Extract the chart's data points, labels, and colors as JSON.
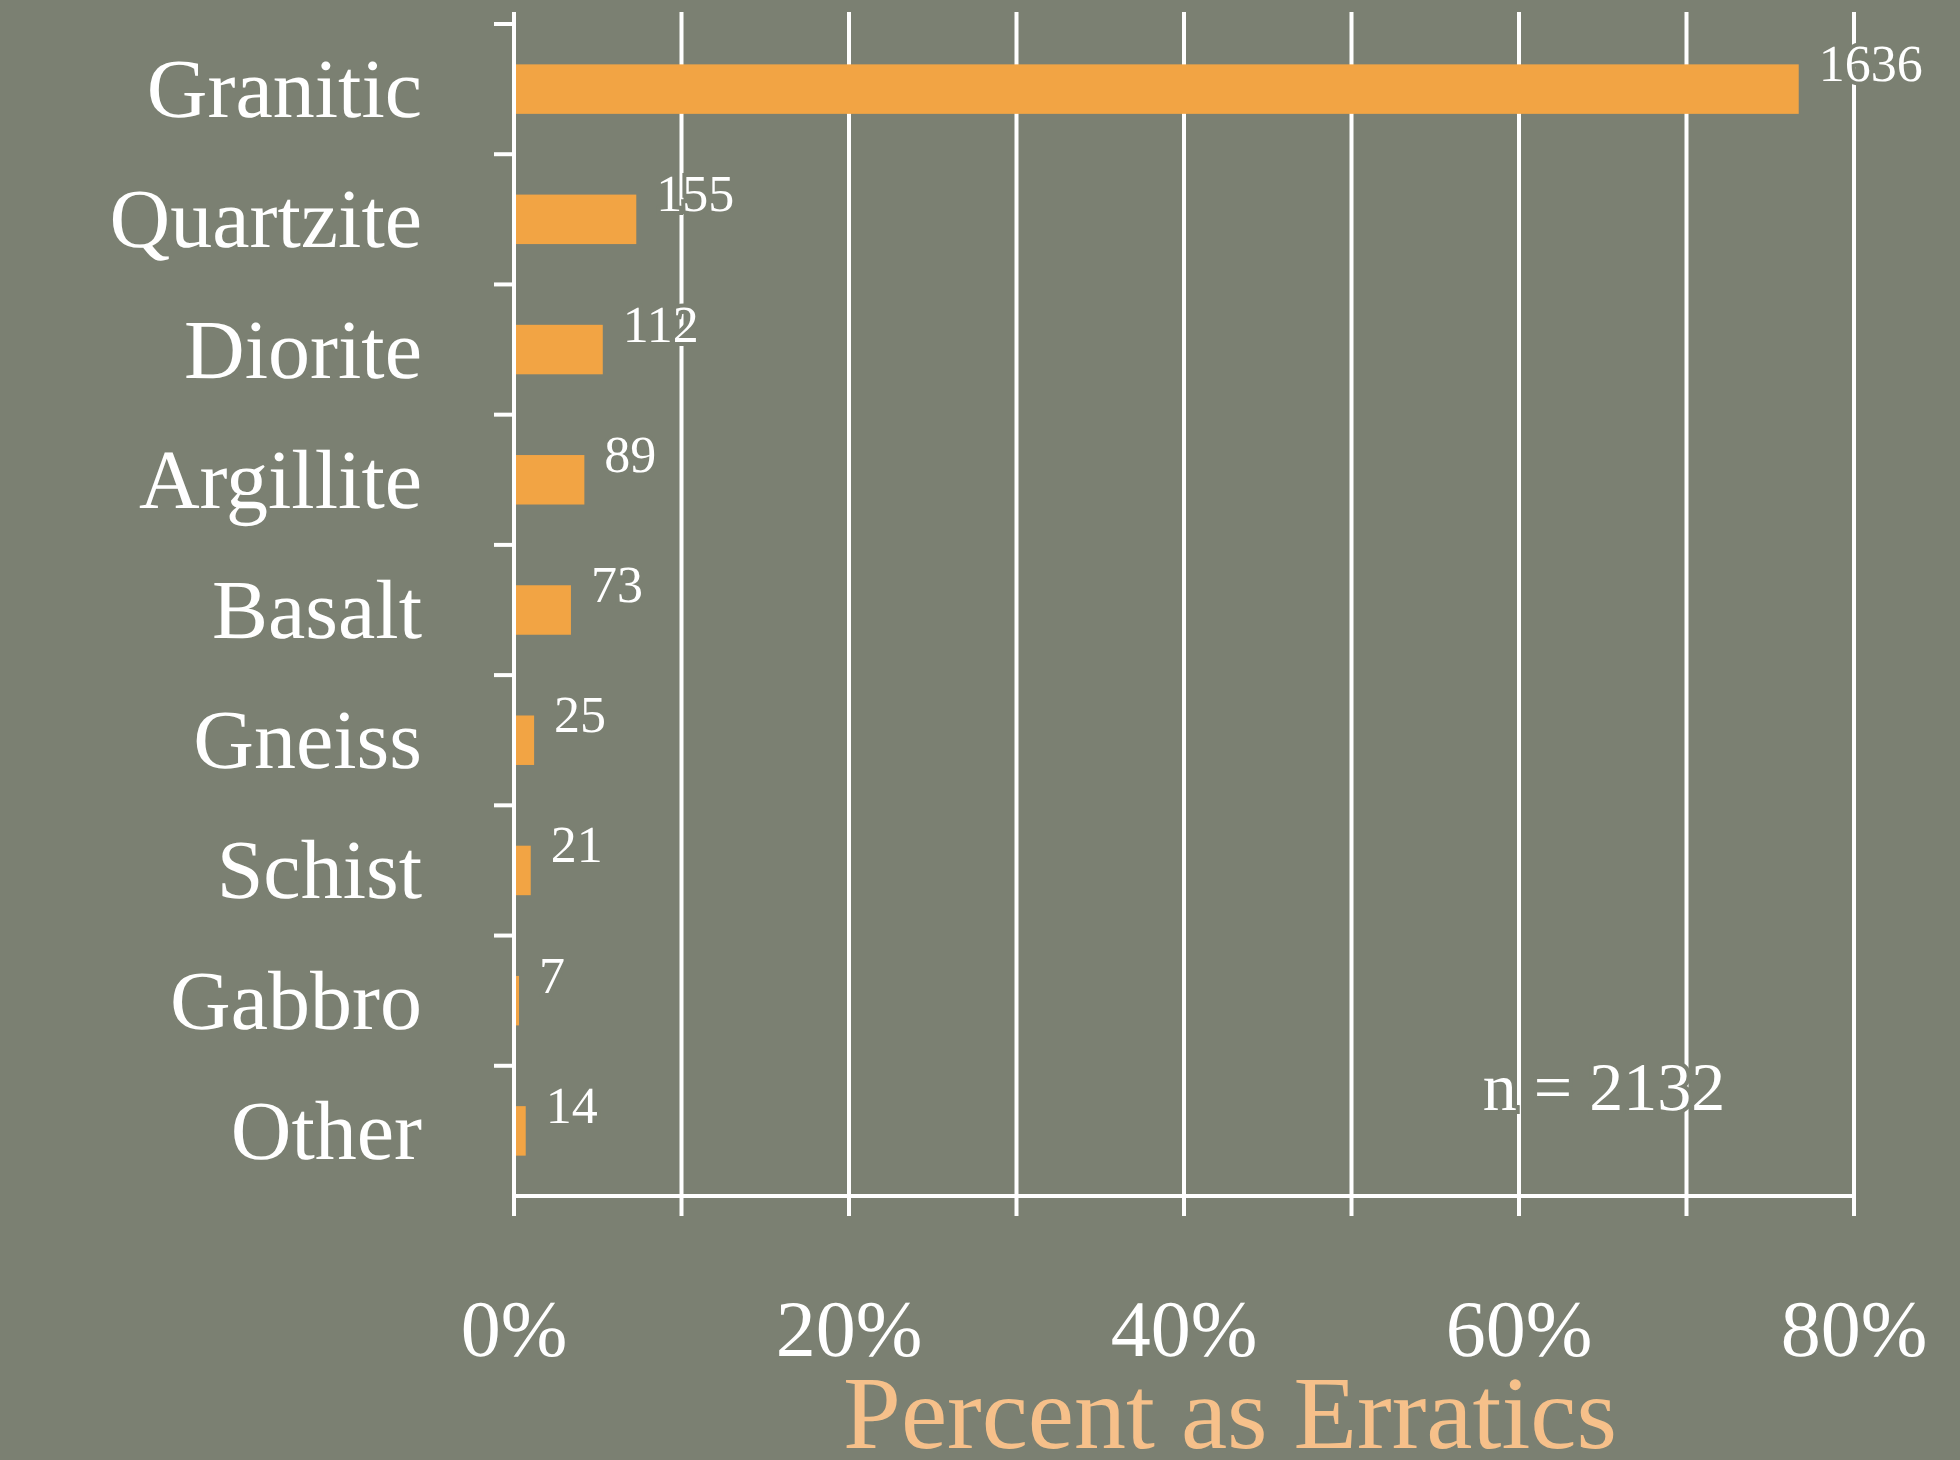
{
  "chart_data": {
    "type": "bar",
    "orientation": "horizontal",
    "xlabel": "Percent as Erratics",
    "categories": [
      "Granitic",
      "Quartzite",
      "Diorite",
      "Argillite",
      "Basalt",
      "Gneiss",
      "Schist",
      "Gabbro",
      "Other"
    ],
    "values": [
      76.7,
      7.3,
      5.3,
      4.2,
      3.4,
      1.2,
      1.0,
      0.3,
      0.7
    ],
    "color": "#f2a444",
    "xlim": [
      0,
      80
    ],
    "xticks": [
      {
        "value": 0,
        "label": "0%"
      },
      {
        "value": 10,
        "label": null
      },
      {
        "value": 20,
        "label": "20%"
      },
      {
        "value": 30,
        "label": null
      },
      {
        "value": 40,
        "label": "40%"
      },
      {
        "value": 50,
        "label": null
      },
      {
        "value": 60,
        "label": "60%"
      },
      {
        "value": 70,
        "label": null
      },
      {
        "value": 80,
        "label": "80%"
      }
    ],
    "grid": "x",
    "annotations": [
      {
        "text": "1636",
        "x": 76.7,
        "y": "Granitic"
      },
      {
        "text": "155",
        "x": 7.3,
        "y": "Quartzite"
      },
      {
        "text": "112",
        "x": 5.3,
        "y": "Diorite"
      },
      {
        "text": "89",
        "x": 4.2,
        "y": "Argillite"
      },
      {
        "text": "73",
        "x": 3.4,
        "y": "Basalt"
      },
      {
        "text": "25",
        "x": 1.2,
        "y": "Gneiss"
      },
      {
        "text": "21",
        "x": 1.0,
        "y": "Schist"
      },
      {
        "text": "7",
        "x": 0.3,
        "y": "Gabbro"
      },
      {
        "text": "14",
        "x": 0.7,
        "y": "Other"
      },
      "n = 2132"
    ]
  }
}
